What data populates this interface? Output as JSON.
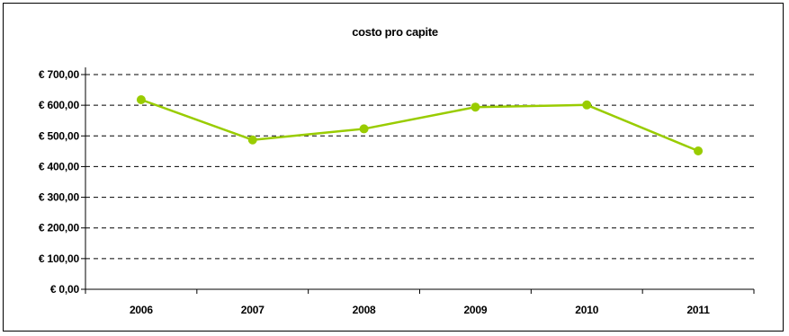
{
  "chart_data": {
    "type": "line",
    "title": "costo pro capite",
    "xlabel": "",
    "ylabel": "",
    "categories": [
      "2006",
      "2007",
      "2008",
      "2009",
      "2010",
      "2011"
    ],
    "series": [
      {
        "values": [
          618,
          487,
          523,
          594,
          601,
          451
        ],
        "color": "#99cc00"
      }
    ],
    "ylim": [
      0,
      700
    ],
    "y_ticks": [
      0,
      100,
      200,
      300,
      400,
      500,
      600,
      700
    ],
    "y_tick_labels": [
      "€ 0,00",
      "€ 100,00",
      "€ 200,00",
      "€ 300,00",
      "€ 400,00",
      "€ 500,00",
      "€ 600,00",
      "€ 700,00"
    ],
    "grid": true,
    "grid_style": "dashed",
    "legend": "none"
  }
}
